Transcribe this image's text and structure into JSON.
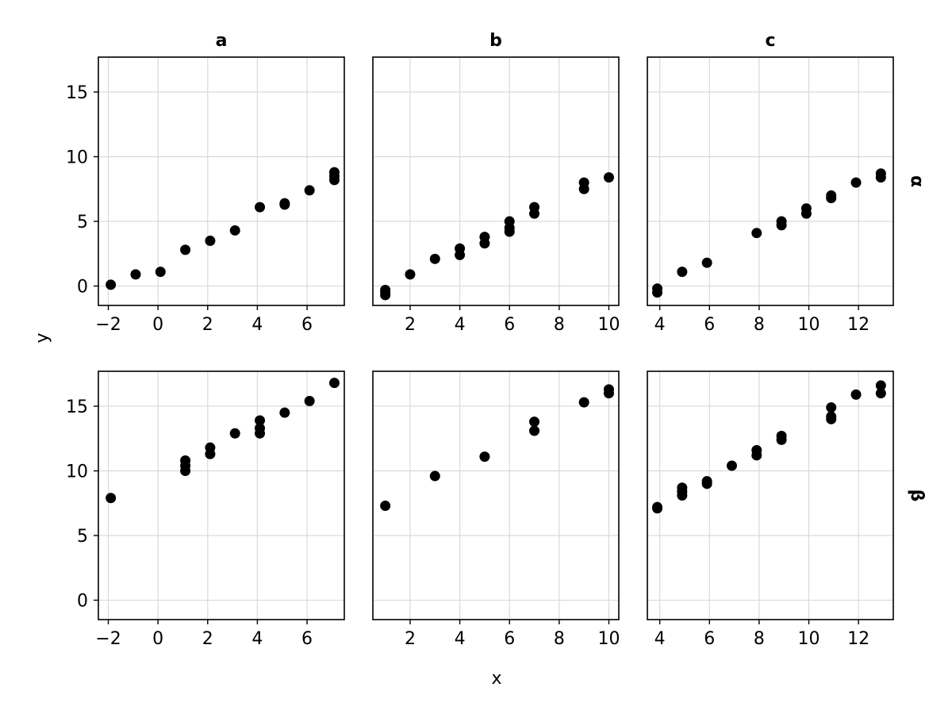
{
  "chart_data": {
    "type": "scatter",
    "xlabel": "x",
    "ylabel": "y",
    "marker_color": "#000000",
    "columns": [
      "a",
      "b",
      "c"
    ],
    "rows": [
      "α",
      "β"
    ],
    "ylim": [
      -1.5,
      17.7
    ],
    "yticks": [
      0,
      5,
      10,
      15
    ],
    "grid": true,
    "panels": [
      {
        "row": "α",
        "col": "a",
        "xlim": [
          -2.4,
          7.5
        ],
        "xticks": [
          -2,
          0,
          2,
          4,
          6
        ],
        "points": [
          [
            -1.9,
            0.1
          ],
          [
            -0.9,
            0.9
          ],
          [
            0.1,
            1.1
          ],
          [
            1.1,
            2.8
          ],
          [
            2.1,
            3.5
          ],
          [
            3.1,
            4.3
          ],
          [
            4.1,
            6.1
          ],
          [
            5.1,
            6.3
          ],
          [
            5.1,
            6.4
          ],
          [
            6.1,
            7.4
          ],
          [
            7.1,
            8.2
          ],
          [
            7.1,
            8.5
          ],
          [
            7.1,
            8.8
          ]
        ]
      },
      {
        "row": "α",
        "col": "b",
        "xlim": [
          0.5,
          10.4
        ],
        "xticks": [
          2,
          4,
          6,
          8,
          10
        ],
        "points": [
          [
            1.0,
            -0.3
          ],
          [
            1.0,
            -0.5
          ],
          [
            1.0,
            -0.7
          ],
          [
            2.0,
            0.9
          ],
          [
            3.0,
            2.1
          ],
          [
            4.0,
            2.4
          ],
          [
            4.0,
            2.9
          ],
          [
            5.0,
            3.3
          ],
          [
            5.0,
            3.8
          ],
          [
            6.0,
            4.2
          ],
          [
            6.0,
            4.5
          ],
          [
            6.0,
            5.0
          ],
          [
            7.0,
            5.6
          ],
          [
            7.0,
            6.1
          ],
          [
            9.0,
            7.5
          ],
          [
            9.0,
            8.0
          ],
          [
            10.0,
            8.4
          ]
        ]
      },
      {
        "row": "α",
        "col": "c",
        "xlim": [
          3.5,
          13.4
        ],
        "xticks": [
          4,
          6,
          8,
          10,
          12
        ],
        "points": [
          [
            3.9,
            -0.2
          ],
          [
            3.9,
            -0.5
          ],
          [
            4.9,
            1.1
          ],
          [
            5.9,
            1.8
          ],
          [
            7.9,
            4.1
          ],
          [
            8.9,
            4.7
          ],
          [
            8.9,
            5.0
          ],
          [
            9.9,
            5.6
          ],
          [
            9.9,
            6.0
          ],
          [
            10.9,
            6.8
          ],
          [
            10.9,
            7.0
          ],
          [
            11.9,
            8.0
          ],
          [
            12.9,
            8.4
          ],
          [
            12.9,
            8.7
          ]
        ]
      },
      {
        "row": "β",
        "col": "a",
        "xlim": [
          -2.4,
          7.5
        ],
        "xticks": [
          -2,
          0,
          2,
          4,
          6
        ],
        "points": [
          [
            -1.9,
            7.9
          ],
          [
            1.1,
            10.0
          ],
          [
            1.1,
            10.4
          ],
          [
            1.1,
            10.8
          ],
          [
            2.1,
            11.3
          ],
          [
            2.1,
            11.8
          ],
          [
            3.1,
            12.9
          ],
          [
            4.1,
            12.9
          ],
          [
            4.1,
            13.3
          ],
          [
            4.1,
            13.9
          ],
          [
            5.1,
            14.5
          ],
          [
            6.1,
            15.4
          ],
          [
            7.1,
            16.8
          ]
        ]
      },
      {
        "row": "β",
        "col": "b",
        "xlim": [
          0.5,
          10.4
        ],
        "xticks": [
          2,
          4,
          6,
          8,
          10
        ],
        "points": [
          [
            1.0,
            7.3
          ],
          [
            3.0,
            9.6
          ],
          [
            5.0,
            11.1
          ],
          [
            7.0,
            13.1
          ],
          [
            7.0,
            13.8
          ],
          [
            9.0,
            15.3
          ],
          [
            10.0,
            16.0
          ],
          [
            10.0,
            16.3
          ]
        ]
      },
      {
        "row": "β",
        "col": "c",
        "xlim": [
          3.5,
          13.4
        ],
        "xticks": [
          4,
          6,
          8,
          10,
          12
        ],
        "points": [
          [
            3.9,
            7.1
          ],
          [
            3.9,
            7.2
          ],
          [
            4.9,
            8.1
          ],
          [
            4.9,
            8.4
          ],
          [
            4.9,
            8.7
          ],
          [
            5.9,
            9.0
          ],
          [
            5.9,
            9.2
          ],
          [
            6.9,
            10.4
          ],
          [
            7.9,
            11.2
          ],
          [
            7.9,
            11.6
          ],
          [
            8.9,
            12.4
          ],
          [
            8.9,
            12.7
          ],
          [
            10.9,
            14.0
          ],
          [
            10.9,
            14.2
          ],
          [
            10.9,
            14.9
          ],
          [
            11.9,
            15.9
          ],
          [
            12.9,
            16.0
          ],
          [
            12.9,
            16.6
          ]
        ]
      }
    ]
  }
}
